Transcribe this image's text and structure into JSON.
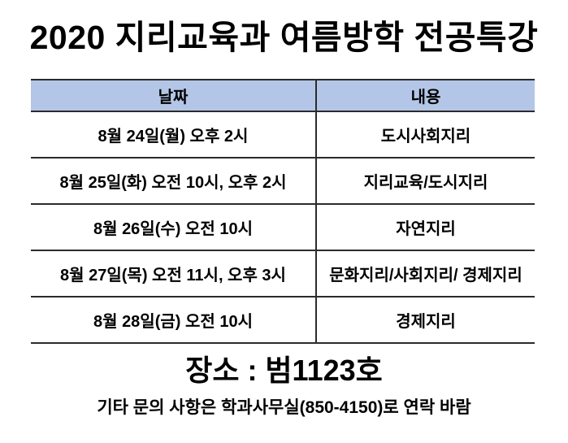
{
  "page": {
    "title": "2020 지리교육과 여름방학 전공특강",
    "location": "장소 : 범1123호",
    "contact": "기타 문의 사항은 학과사무실(850-4150)로 연락 바람"
  },
  "table": {
    "headers": [
      "날짜",
      "내용"
    ],
    "rows": [
      {
        "date": "8월 24일(월) 오후 2시",
        "topic": "도시사회지리"
      },
      {
        "date": "8월 25일(화) 오전 10시, 오후 2시",
        "topic": "지리교육/도시지리"
      },
      {
        "date": "8월 26일(수) 오전 10시",
        "topic": "자연지리"
      },
      {
        "date": "8월 27일(목) 오전 11시, 오후 3시",
        "topic": "문화지리/사회지리/ 경제지리"
      },
      {
        "date": "8월 28일(금) 오전 10시",
        "topic": "경제지리"
      }
    ],
    "header_bg": "#B4C6E7",
    "border_color": "#2b2b2b"
  }
}
